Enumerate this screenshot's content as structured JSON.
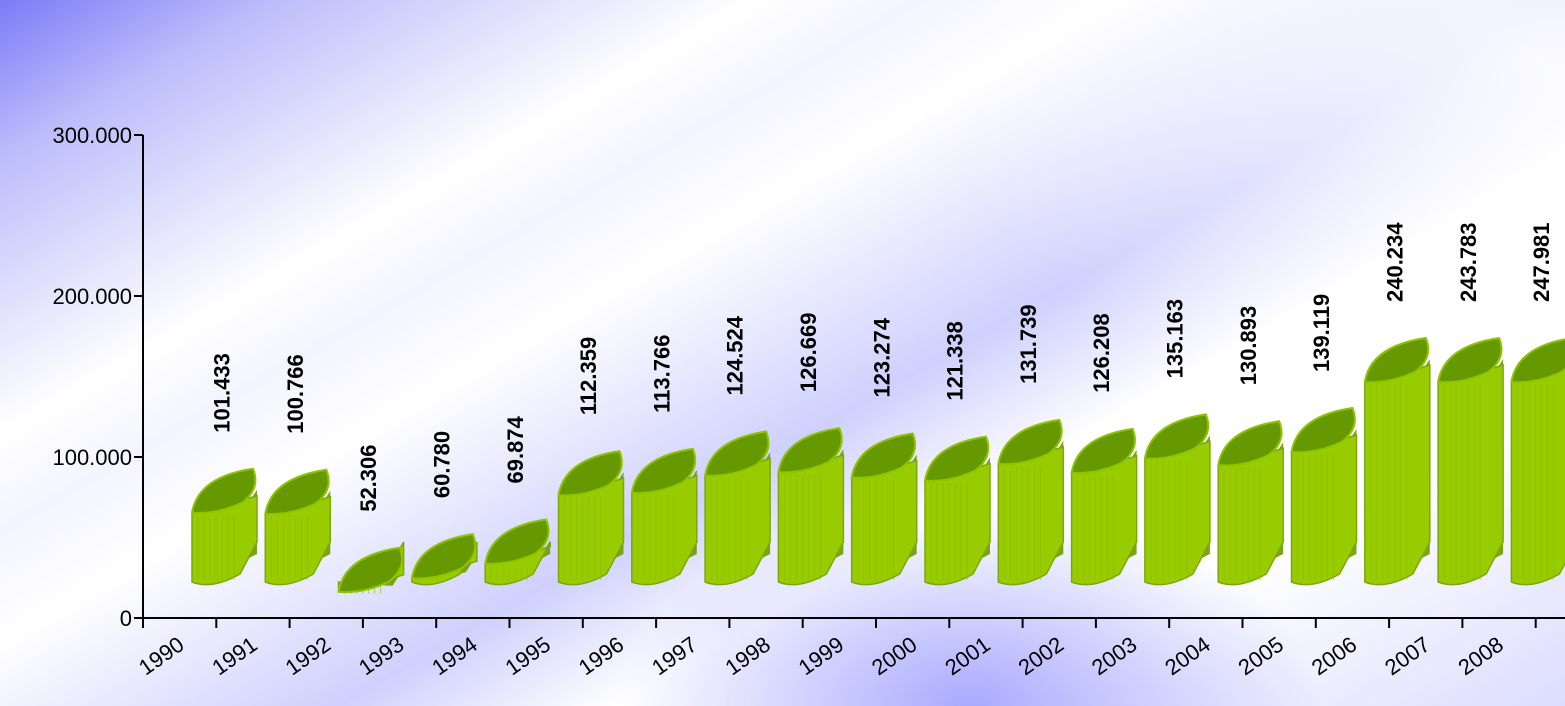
{
  "chart_data": {
    "type": "bar",
    "title": "",
    "xlabel": "",
    "ylabel": "",
    "categories": [
      "1990",
      "1991",
      "1992",
      "1993",
      "1994",
      "1995",
      "1996",
      "1997",
      "1998",
      "1999",
      "2000",
      "2001",
      "2002",
      "2003",
      "2004",
      "2005",
      "2006",
      "2007",
      "2008"
    ],
    "values": [
      101433,
      100766,
      52306,
      60780,
      69874,
      112359,
      113766,
      124524,
      126669,
      123274,
      121338,
      131739,
      126208,
      135163,
      130893,
      139119,
      240234,
      243783,
      247981
    ],
    "value_labels": [
      "101.433",
      "100.766",
      "52.306",
      "60.780",
      "69.874",
      "112.359",
      "113.766",
      "124.524",
      "126.669",
      "123.274",
      "121.338",
      "131.739",
      "126.208",
      "135.163",
      "130.893",
      "139.119",
      "240.234",
      "243.783",
      "247.981"
    ],
    "ylim": [
      0,
      300000
    ],
    "yticks": [
      {
        "value": 0,
        "label": "0"
      },
      {
        "value": 100000,
        "label": "100.000"
      },
      {
        "value": 200000,
        "label": "200.000"
      },
      {
        "value": 300000,
        "label": "300.000"
      }
    ],
    "grid": false,
    "legend": "none",
    "colors": {
      "bar_face": "#99cc00",
      "bar_top": "#669900",
      "bar_edge": "#7aa80a",
      "axis": "#000000"
    }
  }
}
